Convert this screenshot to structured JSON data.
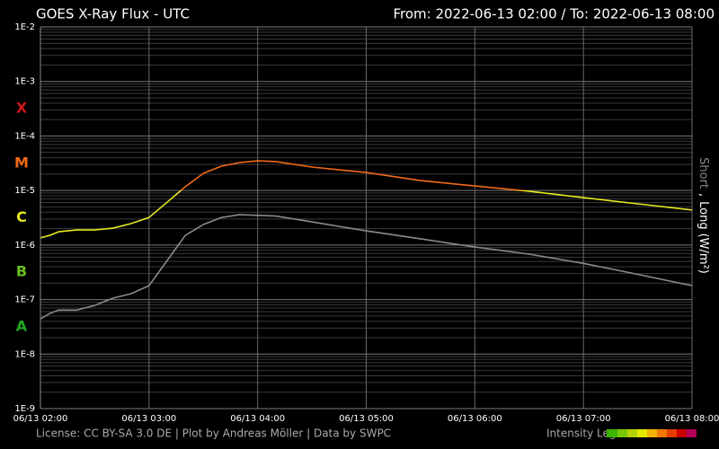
{
  "chart_data": {
    "type": "line",
    "title": "GOES X-Ray Flux - UTC",
    "range_label": "From: 2022-06-13 02:00  /  To: 2022-06-13 08:00",
    "log_scale": true,
    "grid": true,
    "x": [
      2,
      2.083,
      2.167,
      2.333,
      2.5,
      2.667,
      2.833,
      3,
      3.167,
      3.333,
      3.5,
      3.667,
      3.833,
      4,
      4.167,
      4.5,
      5,
      5.5,
      6,
      6.5,
      7,
      7.5,
      8
    ],
    "series": [
      {
        "name": "Long",
        "color": "#ffffff",
        "color_by_class": true,
        "values": [
          1.35e-06,
          1.5e-06,
          1.75e-06,
          1.89e-06,
          1.89e-06,
          2.04e-06,
          2.47e-06,
          3.2e-06,
          6.1e-06,
          1.17e-05,
          2.07e-05,
          2.8e-05,
          3.25e-05,
          3.5e-05,
          3.4e-05,
          2.7e-05,
          2.14e-05,
          1.52e-05,
          1.21e-05,
          9.7e-06,
          7.4e-06,
          5.7e-06,
          4.4e-06
        ]
      },
      {
        "name": "Short",
        "color": "#8a8a8a",
        "color_by_class": false,
        "values": [
          4.4e-08,
          5.5e-08,
          6.4e-08,
          6.4e-08,
          7.8e-08,
          1.06e-07,
          1.28e-07,
          1.8e-07,
          5.2e-07,
          1.5e-06,
          2.38e-06,
          3.2e-06,
          3.6e-06,
          3.5e-06,
          3.4e-06,
          2.66e-06,
          1.82e-06,
          1.3e-06,
          9.2e-07,
          6.8e-07,
          4.6e-07,
          2.9e-07,
          1.8e-07
        ]
      }
    ],
    "legend_separator": ",",
    "unit": "(W/m²)",
    "classes": [
      {
        "label": "X",
        "value": 0.0001,
        "color": "#d01818"
      },
      {
        "label": "M",
        "value": 1e-05,
        "color": "#f06a18"
      },
      {
        "label": "C",
        "value": 1e-06,
        "color": "#e8e820"
      },
      {
        "label": "B",
        "value": 1e-07,
        "color": "#6cc020"
      },
      {
        "label": "A",
        "value": 1e-08,
        "color": "#20a820"
      }
    ],
    "ylim": [
      1e-09,
      0.01
    ],
    "yticks": [
      {
        "value": 1e-09,
        "label": "1E-9"
      },
      {
        "value": 1e-08,
        "label": "1E-8"
      },
      {
        "value": 1e-07,
        "label": "1E-7"
      },
      {
        "value": 1e-06,
        "label": "1E-6"
      },
      {
        "value": 1e-05,
        "label": "1E-5"
      },
      {
        "value": 0.0001,
        "label": "1E-4"
      },
      {
        "value": 0.001,
        "label": "1E-3"
      },
      {
        "value": 0.01,
        "label": "1E-2"
      }
    ],
    "xlim": [
      2,
      8
    ],
    "xticks": [
      {
        "value": 2,
        "label": "06/13 02:00"
      },
      {
        "value": 3,
        "label": "06/13 03:00"
      },
      {
        "value": 4,
        "label": "06/13 04:00"
      },
      {
        "value": 5,
        "label": "06/13 05:00"
      },
      {
        "value": 6,
        "label": "06/13 06:00"
      },
      {
        "value": 7,
        "label": "06/13 07:00"
      },
      {
        "value": 8,
        "label": "06/13 08:00"
      }
    ],
    "footer": "License: CC BY-SA 3.0 DE | Plot by Andreas Möller | Data by SWPC",
    "intensity_legend": "Intensity Leg"
  }
}
